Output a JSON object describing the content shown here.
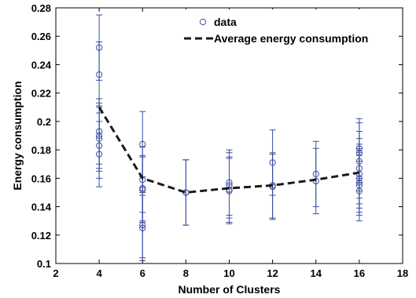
{
  "chart_data": {
    "type": "scatter",
    "xlabel": "Number of Clusters",
    "ylabel": "Energy consumption",
    "xlim": [
      2,
      18
    ],
    "ylim": [
      0.1,
      0.28
    ],
    "x_ticks": [
      2,
      4,
      6,
      8,
      10,
      12,
      14,
      16,
      18
    ],
    "y_ticks": [
      0.1,
      0.12,
      0.14,
      0.16,
      0.18,
      0.2,
      0.22,
      0.24,
      0.26,
      0.28
    ],
    "grid": false,
    "legend_position": "top-right",
    "colors": {
      "data": "#3a4fa0",
      "average": "#1a1a1a"
    },
    "series": [
      {
        "name": "data",
        "style": "markers",
        "points": [
          {
            "x": 4,
            "y": 0.252,
            "err": 0.023
          },
          {
            "x": 4,
            "y": 0.233,
            "err": 0.023
          },
          {
            "x": 4,
            "y": 0.193,
            "err": 0.023
          },
          {
            "x": 4,
            "y": 0.19,
            "err": 0.023
          },
          {
            "x": 4,
            "y": 0.188,
            "err": 0.023
          },
          {
            "x": 4,
            "y": 0.183,
            "err": 0.023
          },
          {
            "x": 4,
            "y": 0.177,
            "err": 0.023
          },
          {
            "x": 6,
            "y": 0.184,
            "err": 0.023
          },
          {
            "x": 6,
            "y": 0.159,
            "err": 0.023
          },
          {
            "x": 6,
            "y": 0.153,
            "err": 0.023
          },
          {
            "x": 6,
            "y": 0.152,
            "err": 0.023
          },
          {
            "x": 6,
            "y": 0.127,
            "err": 0.023
          },
          {
            "x": 6,
            "y": 0.125,
            "err": 0.023
          },
          {
            "x": 8,
            "y": 0.15,
            "err": 0.023
          },
          {
            "x": 8,
            "y": 0.15,
            "err": 0.023
          },
          {
            "x": 10,
            "y": 0.157,
            "err": 0.023
          },
          {
            "x": 10,
            "y": 0.155,
            "err": 0.023
          },
          {
            "x": 10,
            "y": 0.152,
            "err": 0.023
          },
          {
            "x": 10,
            "y": 0.151,
            "err": 0.023
          },
          {
            "x": 12,
            "y": 0.171,
            "err": 0.023
          },
          {
            "x": 12,
            "y": 0.155,
            "err": 0.023
          },
          {
            "x": 12,
            "y": 0.154,
            "err": 0.023
          },
          {
            "x": 14,
            "y": 0.163,
            "err": 0.023
          },
          {
            "x": 14,
            "y": 0.158,
            "err": 0.023
          },
          {
            "x": 16,
            "y": 0.181,
            "err": 0.021
          },
          {
            "x": 16,
            "y": 0.178,
            "err": 0.021
          },
          {
            "x": 16,
            "y": 0.172,
            "err": 0.021
          },
          {
            "x": 16,
            "y": 0.167,
            "err": 0.021
          },
          {
            "x": 16,
            "y": 0.163,
            "err": 0.021
          },
          {
            "x": 16,
            "y": 0.16,
            "err": 0.021
          },
          {
            "x": 16,
            "y": 0.157,
            "err": 0.021
          },
          {
            "x": 16,
            "y": 0.155,
            "err": 0.021
          },
          {
            "x": 16,
            "y": 0.151,
            "err": 0.021
          }
        ]
      },
      {
        "name": "Average energy consumption",
        "style": "dashed-line",
        "x": [
          4,
          6,
          8,
          10,
          12,
          14,
          16
        ],
        "y": [
          0.21,
          0.16,
          0.15,
          0.153,
          0.155,
          0.159,
          0.164
        ]
      }
    ]
  }
}
